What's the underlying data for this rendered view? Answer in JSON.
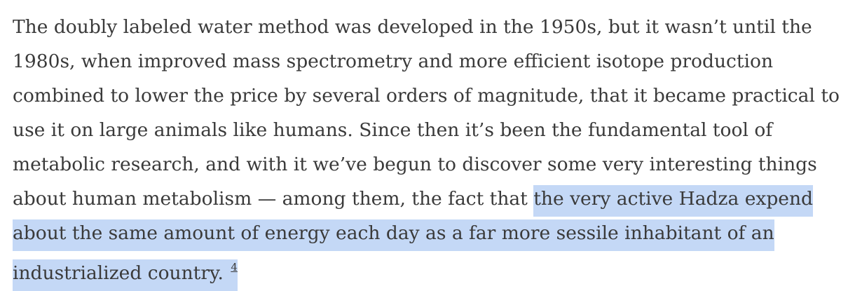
{
  "article": {
    "lines": [
      "The doubly labeled water method was developed in the 1950s, but it wasn’t until the",
      "1980s, when improved mass spectrometry and more efficient isotope production",
      "combined to lower the price by several orders of magnitude, that it became practical to",
      "use it on large animals like humans. Since then it’s been the fundamental tool of",
      "metabolic research, and with it we’ve begun to discover some very interesting things"
    ],
    "line6_plain": "about human metabolism — among them, the fact that ",
    "line6_highlight": "the very active Hadza expend",
    "line7_highlight": "about the same amount of energy each day as a far more sessile inhabitant of an",
    "line8_highlight": "industrialized country.",
    "footnote": "4"
  },
  "highlight_color": "#c4d8f6",
  "text_color": "#3a3a3a"
}
